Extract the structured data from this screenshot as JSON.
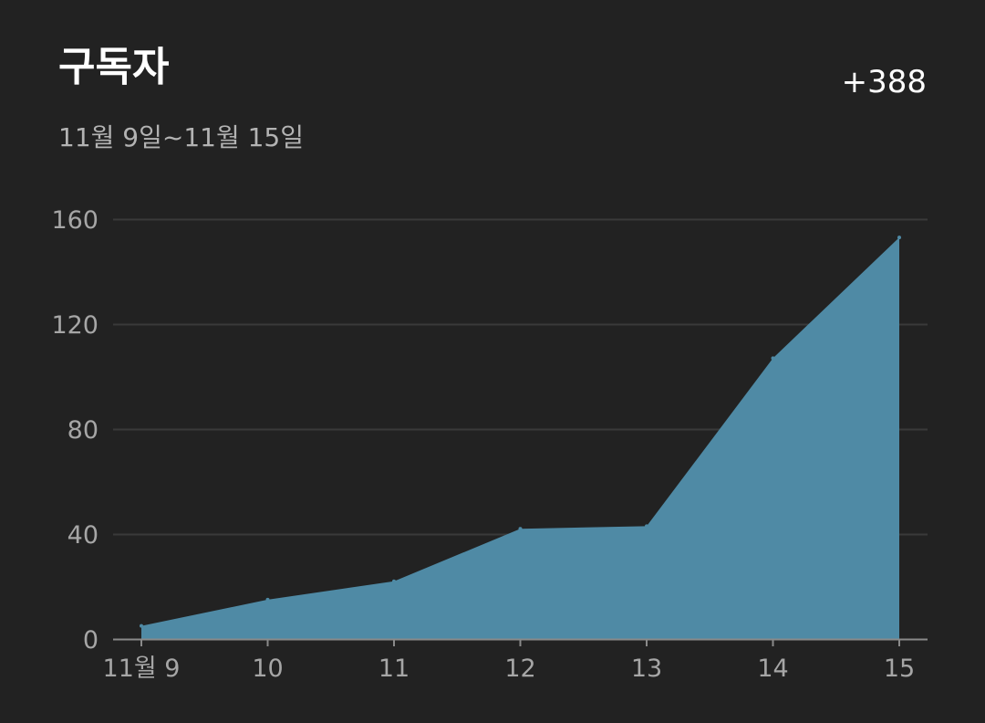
{
  "header": {
    "title": "구독자",
    "date_range": "11월 9일~11월 15일",
    "total_change": "+388"
  },
  "colors": {
    "background": "#222222",
    "area_fill": "#4f8aa5",
    "gridline": "#3a3a3a",
    "tick_text": "#a6a6a6",
    "axis_line": "#8a8a8a"
  },
  "chart_data": {
    "type": "area",
    "title": "구독자",
    "subtitle": "11월 9일~11월 15일",
    "x_tick_labels": [
      "11월 9",
      "10",
      "11",
      "12",
      "13",
      "14",
      "15"
    ],
    "y_tick_labels": [
      "0",
      "40",
      "80",
      "120",
      "160"
    ],
    "y_ticks": [
      0,
      40,
      80,
      120,
      160
    ],
    "values": [
      5,
      15,
      22,
      42,
      43,
      107,
      153
    ],
    "ylim": [
      0,
      160
    ],
    "grid": true,
    "legend": "none"
  }
}
